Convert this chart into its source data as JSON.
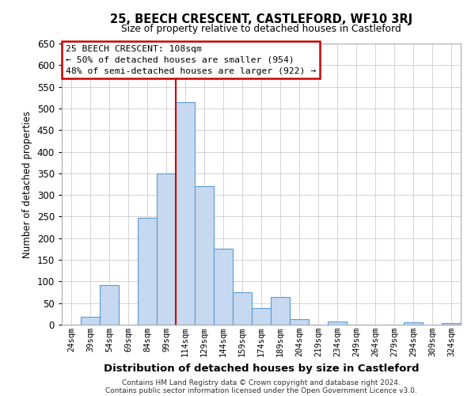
{
  "title": "25, BEECH CRESCENT, CASTLEFORD, WF10 3RJ",
  "subtitle": "Size of property relative to detached houses in Castleford",
  "xlabel": "Distribution of detached houses by size in Castleford",
  "ylabel": "Number of detached properties",
  "bin_labels": [
    "24sqm",
    "39sqm",
    "54sqm",
    "69sqm",
    "84sqm",
    "99sqm",
    "114sqm",
    "129sqm",
    "144sqm",
    "159sqm",
    "174sqm",
    "189sqm",
    "204sqm",
    "219sqm",
    "234sqm",
    "249sqm",
    "264sqm",
    "279sqm",
    "294sqm",
    "309sqm",
    "324sqm"
  ],
  "bar_values": [
    0,
    18,
    92,
    0,
    248,
    350,
    515,
    320,
    175,
    75,
    38,
    65,
    12,
    0,
    8,
    0,
    0,
    0,
    5,
    0,
    3
  ],
  "bar_color": "#c6d9f0",
  "bar_edge_color": "#5b9bd5",
  "vline_color": "#cc0000",
  "annotation_title": "25 BEECH CRESCENT: 108sqm",
  "annotation_line1": "← 50% of detached houses are smaller (954)",
  "annotation_line2": "48% of semi-detached houses are larger (922) →",
  "annotation_box_edge_color": "#cc0000",
  "ylim": [
    0,
    650
  ],
  "yticks": [
    0,
    50,
    100,
    150,
    200,
    250,
    300,
    350,
    400,
    450,
    500,
    550,
    600,
    650
  ],
  "footer1": "Contains HM Land Registry data © Crown copyright and database right 2024.",
  "footer2": "Contains public sector information licensed under the Open Government Licence v3.0.",
  "bg_color": "#ffffff",
  "grid_color": "#cccccc"
}
